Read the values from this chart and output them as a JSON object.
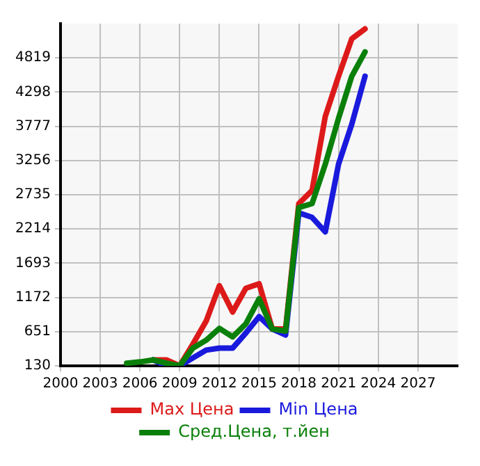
{
  "chart_data": {
    "type": "line",
    "x": [
      2005,
      2006,
      2007,
      2008,
      2009,
      2010,
      2011,
      2012,
      2013,
      2014,
      2015,
      2016,
      2017,
      2018,
      2019,
      2020,
      2021,
      2022,
      2023
    ],
    "series": [
      {
        "name": "Max Цена",
        "color": "#dd1a1a",
        "values": [
          null,
          null,
          220,
          220,
          130,
          460,
          810,
          1350,
          950,
          1310,
          1380,
          690,
          690,
          2600,
          2800,
          3930,
          4540,
          5110,
          5260
        ]
      },
      {
        "name": "Min Цена",
        "color": "#1a1add",
        "values": [
          null,
          null,
          220,
          130,
          130,
          250,
          370,
          400,
          400,
          630,
          880,
          690,
          600,
          2460,
          2390,
          2170,
          3200,
          3810,
          4540
        ]
      },
      {
        "name": "Сред.Цена, т.йен",
        "color": "#0a800a",
        "values": [
          170,
          190,
          220,
          170,
          130,
          400,
          520,
          700,
          570,
          770,
          1150,
          690,
          660,
          2540,
          2600,
          3200,
          3900,
          4540,
          4910
        ]
      }
    ],
    "xlim": [
      2000,
      2030
    ],
    "xticks": [
      2000,
      2003,
      2006,
      2009,
      2012,
      2015,
      2018,
      2021,
      2024,
      2027
    ],
    "ylim": [
      130,
      5340
    ],
    "yticks": [
      130,
      651,
      1172,
      1693,
      2214,
      2735,
      3256,
      3777,
      4298,
      4819
    ],
    "grid": true,
    "legend": "bottom",
    "marker": "none",
    "line_style": "solid"
  }
}
